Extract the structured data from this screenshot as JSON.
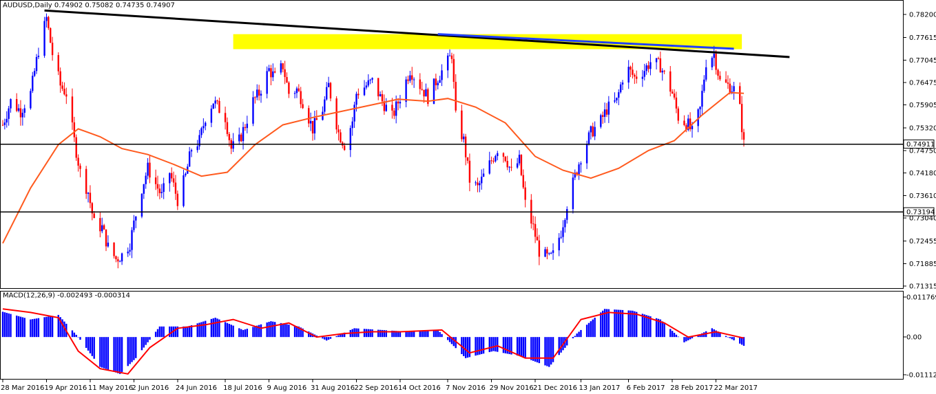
{
  "chart_window": {
    "symbol_header": "AUDUSD,Daily  0.74902 0.75082 0.74735 0.74907"
  },
  "price_axis": {
    "tick_labels": [
      "0.78200",
      "0.77615",
      "0.77045",
      "0.76475",
      "0.75905",
      "0.75320",
      "0.74750",
      "0.74180",
      "0.73610",
      "0.73040",
      "0.72455",
      "0.71885",
      "0.71315"
    ]
  },
  "time_axis": {
    "labels": [
      "28 Mar 2016",
      "19 Apr 2016",
      "11 May 2016",
      "2 Jun 2016",
      "24 Jun 2016",
      "18 Jul 2016",
      "9 Aug 2016",
      "31 Aug 2016",
      "22 Sep 2016",
      "14 Oct 2016",
      "7 Nov 2016",
      "29 Nov 2016",
      "21 Dec 2016",
      "13 Jan 2017",
      "6 Feb 2017",
      "28 Feb 2017",
      "22 Mar 2017"
    ]
  },
  "horizontal_levels": [
    {
      "price": 0.74911,
      "label": "0.74911"
    },
    {
      "price": 0.73194,
      "label": "0.73194"
    }
  ],
  "macd_panel": {
    "header": "MACD(12,26,9) -0.002493 -0.000314",
    "tick_labels": [
      "0.011769",
      "0.00",
      "-0.011122"
    ]
  },
  "colors": {
    "bull_candle": "#0000ff",
    "bear_candle": "#ff0000",
    "moving_average": "#ff5a1e",
    "trendline_black": "#000000",
    "trendline_blue": "#1f3fff",
    "resistance_zone": "#ffff00",
    "macd_histogram": "#0000ff",
    "macd_signal": "#ff0000",
    "level_line": "#000000"
  },
  "chart_data": {
    "type": "candlestick",
    "instrument": "AUDUSD",
    "timeframe": "Daily",
    "last_bar": {
      "open": 0.74902,
      "high": 0.75082,
      "low": 0.74735,
      "close": 0.74907
    },
    "ylim": [
      0.71315,
      0.782
    ],
    "yticks": [
      0.782,
      0.77615,
      0.77045,
      0.76475,
      0.75905,
      0.7532,
      0.7475,
      0.7418,
      0.7361,
      0.7304,
      0.72455,
      0.71885,
      0.71315
    ],
    "x_range": [
      "2016-03-28",
      "2017-04-05"
    ],
    "close_path": [
      [
        "2016-03-28",
        0.754
      ],
      [
        "2016-04-01",
        0.76
      ],
      [
        "2016-04-06",
        0.7575
      ],
      [
        "2016-04-11",
        0.762
      ],
      [
        "2016-04-15",
        0.773
      ],
      [
        "2016-04-19",
        0.781
      ],
      [
        "2016-04-22",
        0.772
      ],
      [
        "2016-04-26",
        0.764
      ],
      [
        "2016-04-29",
        0.762
      ],
      [
        "2016-05-03",
        0.75
      ],
      [
        "2016-05-06",
        0.742
      ],
      [
        "2016-05-10",
        0.737
      ],
      [
        "2016-05-13",
        0.729
      ],
      [
        "2016-05-17",
        0.728
      ],
      [
        "2016-05-20",
        0.723
      ],
      [
        "2016-05-24",
        0.72
      ],
      [
        "2016-05-27",
        0.721
      ],
      [
        "2016-05-31",
        0.724
      ],
      [
        "2016-06-02",
        0.729
      ],
      [
        "2016-06-06",
        0.738
      ],
      [
        "2016-06-09",
        0.743
      ],
      [
        "2016-06-13",
        0.739
      ],
      [
        "2016-06-16",
        0.736
      ],
      [
        "2016-06-20",
        0.742
      ],
      [
        "2016-06-24",
        0.735
      ],
      [
        "2016-06-28",
        0.741
      ],
      [
        "2016-07-01",
        0.748
      ],
      [
        "2016-07-05",
        0.75
      ],
      [
        "2016-07-08",
        0.756
      ],
      [
        "2016-07-12",
        0.76
      ],
      [
        "2016-07-15",
        0.758
      ],
      [
        "2016-07-18",
        0.756
      ],
      [
        "2016-07-21",
        0.748
      ],
      [
        "2016-07-25",
        0.75
      ],
      [
        "2016-07-28",
        0.754
      ],
      [
        "2016-08-01",
        0.76
      ],
      [
        "2016-08-04",
        0.762
      ],
      [
        "2016-08-09",
        0.768
      ],
      [
        "2016-08-12",
        0.766
      ],
      [
        "2016-08-16",
        0.769
      ],
      [
        "2016-08-19",
        0.762
      ],
      [
        "2016-08-23",
        0.763
      ],
      [
        "2016-08-26",
        0.76
      ],
      [
        "2016-08-31",
        0.753
      ],
      [
        "2016-09-05",
        0.758
      ],
      [
        "2016-09-08",
        0.764
      ],
      [
        "2016-09-13",
        0.752
      ],
      [
        "2016-09-16",
        0.749
      ],
      [
        "2016-09-20",
        0.755
      ],
      [
        "2016-09-22",
        0.762
      ],
      [
        "2016-09-27",
        0.764
      ],
      [
        "2016-09-30",
        0.765
      ],
      [
        "2016-10-05",
        0.76
      ],
      [
        "2016-10-10",
        0.756
      ],
      [
        "2016-10-14",
        0.761
      ],
      [
        "2016-10-19",
        0.768
      ],
      [
        "2016-10-24",
        0.764
      ],
      [
        "2016-10-28",
        0.761
      ],
      [
        "2016-11-02",
        0.766
      ],
      [
        "2016-11-07",
        0.77
      ],
      [
        "2016-11-09",
        0.772
      ],
      [
        "2016-11-11",
        0.756
      ],
      [
        "2016-11-15",
        0.75
      ],
      [
        "2016-11-18",
        0.74
      ],
      [
        "2016-11-22",
        0.738
      ],
      [
        "2016-11-25",
        0.741
      ],
      [
        "2016-11-29",
        0.745
      ],
      [
        "2016-12-02",
        0.748
      ],
      [
        "2016-12-06",
        0.746
      ],
      [
        "2016-12-09",
        0.742
      ],
      [
        "2016-12-13",
        0.745
      ],
      [
        "2016-12-16",
        0.734
      ],
      [
        "2016-12-20",
        0.728
      ],
      [
        "2016-12-23",
        0.722
      ],
      [
        "2016-12-28",
        0.72
      ],
      [
        "2016-12-30",
        0.721
      ],
      [
        "2017-01-03",
        0.727
      ],
      [
        "2017-01-06",
        0.734
      ],
      [
        "2017-01-10",
        0.741
      ],
      [
        "2017-01-13",
        0.746
      ],
      [
        "2017-01-18",
        0.752
      ],
      [
        "2017-01-23",
        0.755
      ],
      [
        "2017-01-26",
        0.758
      ],
      [
        "2017-01-31",
        0.76
      ],
      [
        "2017-02-03",
        0.766
      ],
      [
        "2017-02-06",
        0.768
      ],
      [
        "2017-02-09",
        0.766
      ],
      [
        "2017-02-14",
        0.768
      ],
      [
        "2017-02-17",
        0.77
      ],
      [
        "2017-02-22",
        0.769
      ],
      [
        "2017-02-28",
        0.762
      ],
      [
        "2017-03-03",
        0.756
      ],
      [
        "2017-03-08",
        0.754
      ],
      [
        "2017-03-10",
        0.752
      ],
      [
        "2017-03-14",
        0.758
      ],
      [
        "2017-03-17",
        0.77
      ],
      [
        "2017-03-21",
        0.772
      ],
      [
        "2017-03-24",
        0.765
      ],
      [
        "2017-03-28",
        0.764
      ],
      [
        "2017-03-31",
        0.763
      ],
      [
        "2017-04-03",
        0.758
      ],
      [
        "2017-04-05",
        0.7491
      ]
    ],
    "moving_average": [
      [
        "2016-03-28",
        0.724
      ],
      [
        "2016-04-11",
        0.738
      ],
      [
        "2016-04-25",
        0.749
      ],
      [
        "2016-05-05",
        0.753
      ],
      [
        "2016-05-16",
        0.751
      ],
      [
        "2016-05-27",
        0.748
      ],
      [
        "2016-06-09",
        0.7465
      ],
      [
        "2016-06-22",
        0.744
      ],
      [
        "2016-07-06",
        0.741
      ],
      [
        "2016-07-19",
        0.742
      ],
      [
        "2016-08-02",
        0.749
      ],
      [
        "2016-08-16",
        0.754
      ],
      [
        "2016-09-01",
        0.756
      ],
      [
        "2016-09-15",
        0.7575
      ],
      [
        "2016-09-29",
        0.759
      ],
      [
        "2016-10-13",
        0.7605
      ],
      [
        "2016-10-28",
        0.76
      ],
      [
        "2016-11-07",
        0.7607
      ],
      [
        "2016-11-21",
        0.7585
      ],
      [
        "2016-12-06",
        0.7545
      ],
      [
        "2016-12-21",
        0.746
      ],
      [
        "2017-01-04",
        0.7425
      ],
      [
        "2017-01-18",
        0.7405
      ],
      [
        "2017-02-01",
        0.743
      ],
      [
        "2017-02-16",
        0.7475
      ],
      [
        "2017-03-01",
        0.75
      ],
      [
        "2017-03-15",
        0.7565
      ],
      [
        "2017-03-29",
        0.7622
      ],
      [
        "2017-04-05",
        0.762
      ]
    ],
    "trendline_black": {
      "from": [
        "2016-04-18",
        0.783
      ],
      "to": [
        "2017-04-28",
        0.7712
      ]
    },
    "trendline_blue": {
      "from": [
        "2016-11-02",
        0.777
      ],
      "to": [
        "2017-03-31",
        0.7733
      ]
    },
    "resistance_zone": {
      "from": "2016-07-22",
      "to": "2017-04-04",
      "price_low": 0.7732,
      "price_high": 0.777
    },
    "macd": {
      "ylim": [
        -0.011122,
        0.011769
      ],
      "histogram": [
        [
          "2016-03-28",
          0.0072
        ],
        [
          "2016-04-11",
          0.005
        ],
        [
          "2016-04-25",
          0.0063
        ],
        [
          "2016-05-05",
          0.0
        ],
        [
          "2016-05-16",
          -0.0085
        ],
        [
          "2016-05-26",
          -0.0105
        ],
        [
          "2016-06-03",
          -0.006
        ],
        [
          "2016-06-15",
          0.003
        ],
        [
          "2016-06-29",
          0.003
        ],
        [
          "2016-07-13",
          0.0055
        ],
        [
          "2016-07-27",
          0.002
        ],
        [
          "2016-08-10",
          0.0045
        ],
        [
          "2016-08-24",
          0.003
        ],
        [
          "2016-09-07",
          -0.001
        ],
        [
          "2016-09-21",
          0.0025
        ],
        [
          "2016-10-05",
          0.002
        ],
        [
          "2016-10-19",
          0.0015
        ],
        [
          "2016-11-02",
          0.002
        ],
        [
          "2016-11-16",
          -0.006
        ],
        [
          "2016-11-30",
          -0.004
        ],
        [
          "2016-12-14",
          -0.0055
        ],
        [
          "2016-12-28",
          -0.0085
        ],
        [
          "2017-01-11",
          0.001
        ],
        [
          "2017-01-25",
          0.008
        ],
        [
          "2017-02-08",
          0.0075
        ],
        [
          "2017-02-22",
          0.005
        ],
        [
          "2017-03-06",
          -0.0015
        ],
        [
          "2017-03-20",
          0.0025
        ],
        [
          "2017-04-05",
          -0.0025
        ]
      ],
      "signal": [
        [
          "2016-03-28",
          0.008
        ],
        [
          "2016-04-11",
          0.007
        ],
        [
          "2016-04-25",
          0.0055
        ],
        [
          "2016-05-05",
          -0.004
        ],
        [
          "2016-05-16",
          -0.009
        ],
        [
          "2016-05-30",
          -0.0105
        ],
        [
          "2016-06-10",
          -0.003
        ],
        [
          "2016-06-24",
          0.0025
        ],
        [
          "2016-07-08",
          0.0035
        ],
        [
          "2016-07-22",
          0.005
        ],
        [
          "2016-08-05",
          0.0025
        ],
        [
          "2016-08-19",
          0.004
        ],
        [
          "2016-09-02",
          0.0
        ],
        [
          "2016-09-16",
          0.001
        ],
        [
          "2016-09-30",
          0.0015
        ],
        [
          "2016-10-14",
          0.0015
        ],
        [
          "2016-11-04",
          0.002
        ],
        [
          "2016-11-18",
          -0.0045
        ],
        [
          "2016-12-02",
          -0.0025
        ],
        [
          "2016-12-16",
          -0.006
        ],
        [
          "2016-12-30",
          -0.006
        ],
        [
          "2017-01-13",
          0.005
        ],
        [
          "2017-01-27",
          0.007
        ],
        [
          "2017-02-10",
          0.0065
        ],
        [
          "2017-02-24",
          0.004
        ],
        [
          "2017-03-08",
          0.0
        ],
        [
          "2017-03-22",
          0.0015
        ],
        [
          "2017-04-05",
          -0.0003
        ]
      ]
    }
  }
}
